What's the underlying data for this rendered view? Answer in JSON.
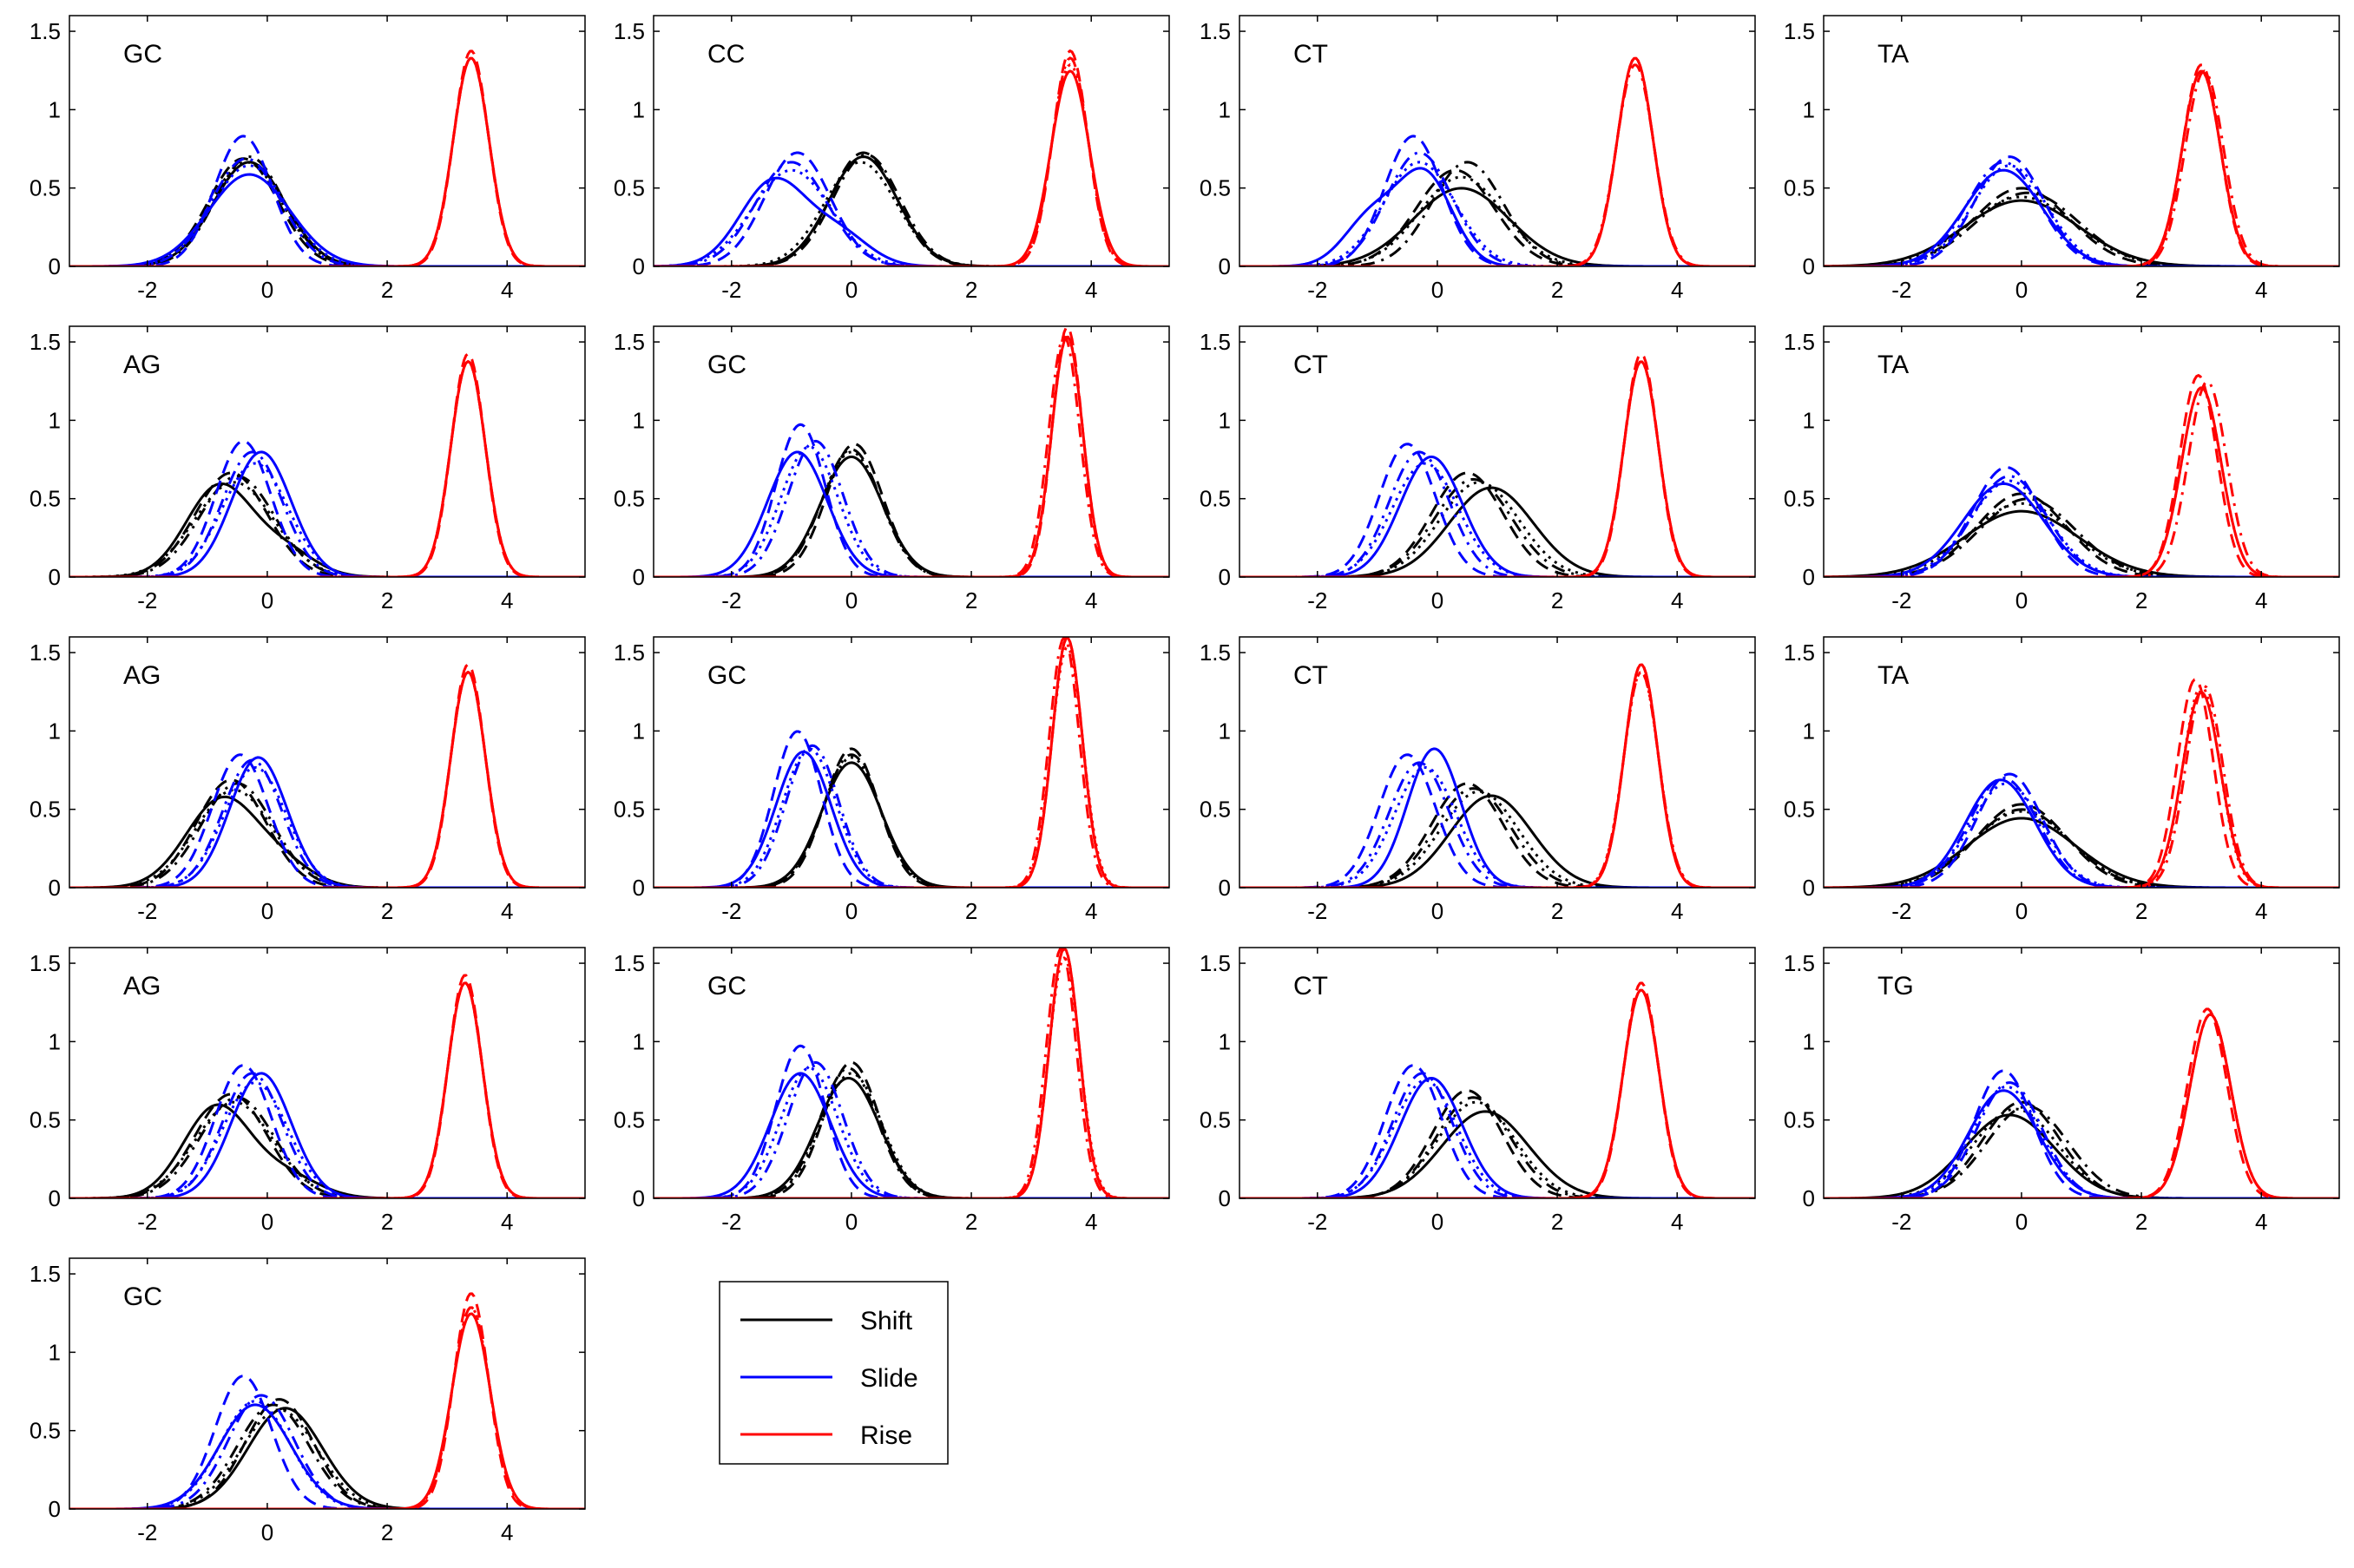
{
  "chart_data": {
    "type": "line",
    "layout": {
      "rows": 5,
      "cols": 4
    },
    "xlim": [
      -3.3,
      5.3
    ],
    "ylim": [
      0,
      1.6
    ],
    "x_ticks": [
      -2,
      0,
      2,
      4
    ],
    "x_tick_labels": [
      "-2",
      "0",
      "2",
      "4"
    ],
    "y_ticks": [
      0,
      0.5,
      1,
      1.5
    ],
    "y_tick_labels": [
      "0",
      "0.5",
      "1",
      "1.5"
    ],
    "grid": false,
    "line_styles": [
      "solid",
      "dashed",
      "dashdot",
      "dotted"
    ],
    "legend": {
      "placement": "below-row-4-column-2",
      "entries": [
        {
          "name": "Shift",
          "color": "#000000"
        },
        {
          "name": "Slide",
          "color": "#0000ff"
        },
        {
          "name": "Rise",
          "color": "#ff0000"
        }
      ]
    },
    "panels": [
      {
        "label": "GC",
        "row": 0,
        "col": 0,
        "shift": [
          {
            "mu": -0.3,
            "sigma": 0.6
          },
          {
            "mu": -0.4,
            "sigma": 0.58
          },
          {
            "mu": -0.3,
            "sigma": 0.57
          },
          {
            "mu": -0.35,
            "sigma": 0.6
          }
        ],
        "slide": [
          {
            "mu": -0.3,
            "sigma": 0.68
          },
          {
            "mu": -0.4,
            "sigma": 0.48
          },
          {
            "mu": -0.35,
            "sigma": 0.58
          },
          {
            "mu": -0.3,
            "sigma": 0.62
          }
        ],
        "rise": [
          {
            "mu": 3.4,
            "sigma": 0.3
          },
          {
            "mu": 3.4,
            "sigma": 0.29
          },
          {
            "mu": 3.4,
            "sigma": 0.3
          },
          {
            "mu": 3.4,
            "sigma": 0.3
          }
        ]
      },
      {
        "label": "CC",
        "row": 0,
        "col": 1,
        "shift": [
          {
            "mu": 0.2,
            "sigma": 0.57
          },
          {
            "mu": 0.2,
            "sigma": 0.55
          },
          {
            "mu": 0.25,
            "sigma": 0.56
          },
          {
            "mu": 0.15,
            "sigma": 0.6
          }
        ],
        "slide": [
          {
            "mu": -1.3,
            "sigma": 0.55,
            "w": 0.75,
            "mu2": -0.2,
            "sigma2": 0.5
          },
          {
            "mu": -0.9,
            "sigma": 0.55
          },
          {
            "mu": -1.0,
            "sigma": 0.6
          },
          {
            "mu": -1.0,
            "sigma": 0.65
          }
        ],
        "rise": [
          {
            "mu": 3.65,
            "sigma": 0.32
          },
          {
            "mu": 3.65,
            "sigma": 0.29
          },
          {
            "mu": 3.65,
            "sigma": 0.3
          },
          {
            "mu": 3.65,
            "sigma": 0.31
          }
        ]
      },
      {
        "label": "CT",
        "row": 0,
        "col": 2,
        "shift": [
          {
            "mu": 0.4,
            "sigma": 0.8
          },
          {
            "mu": 0.3,
            "sigma": 0.65
          },
          {
            "mu": 0.5,
            "sigma": 0.6
          },
          {
            "mu": 0.4,
            "sigma": 0.7
          }
        ],
        "slide": [
          {
            "mu": -0.2,
            "sigma": 0.45,
            "w": 0.65,
            "mu2": -1.1,
            "sigma2": 0.45
          },
          {
            "mu": -0.4,
            "sigma": 0.48
          },
          {
            "mu": -0.3,
            "sigma": 0.55
          },
          {
            "mu": -0.3,
            "sigma": 0.6
          }
        ],
        "rise": [
          {
            "mu": 3.3,
            "sigma": 0.3
          },
          {
            "mu": 3.3,
            "sigma": 0.3
          },
          {
            "mu": 3.3,
            "sigma": 0.31
          },
          {
            "mu": 3.3,
            "sigma": 0.3
          }
        ]
      },
      {
        "label": "TA",
        "row": 0,
        "col": 3,
        "shift": [
          {
            "mu": 0.0,
            "sigma": 0.95
          },
          {
            "mu": 0.0,
            "sigma": 0.8
          },
          {
            "mu": 0.1,
            "sigma": 0.85
          },
          {
            "mu": 0.0,
            "sigma": 0.9
          }
        ],
        "slide": [
          {
            "mu": -0.3,
            "sigma": 0.65
          },
          {
            "mu": -0.2,
            "sigma": 0.57
          },
          {
            "mu": -0.3,
            "sigma": 0.6
          },
          {
            "mu": -0.2,
            "sigma": 0.62
          }
        ],
        "rise": [
          {
            "mu": 3.0,
            "sigma": 0.32
          },
          {
            "mu": 3.0,
            "sigma": 0.31
          },
          {
            "mu": 3.05,
            "sigma": 0.32
          },
          {
            "mu": 3.0,
            "sigma": 0.32
          }
        ]
      },
      {
        "label": "AG",
        "row": 1,
        "col": 0,
        "shift": [
          {
            "mu": -0.8,
            "sigma": 0.55,
            "w": 0.8,
            "mu2": 0.3,
            "sigma2": 0.5
          },
          {
            "mu": -0.6,
            "sigma": 0.6
          },
          {
            "mu": -0.5,
            "sigma": 0.62
          },
          {
            "mu": -0.55,
            "sigma": 0.66
          }
        ],
        "slide": [
          {
            "mu": -0.1,
            "sigma": 0.5
          },
          {
            "mu": -0.4,
            "sigma": 0.46
          },
          {
            "mu": -0.25,
            "sigma": 0.5
          },
          {
            "mu": -0.2,
            "sigma": 0.55
          }
        ],
        "rise": [
          {
            "mu": 3.35,
            "sigma": 0.29
          },
          {
            "mu": 3.35,
            "sigma": 0.28
          },
          {
            "mu": 3.35,
            "sigma": 0.29
          },
          {
            "mu": 3.35,
            "sigma": 0.29
          }
        ]
      },
      {
        "label": "GC",
        "row": 1,
        "col": 1,
        "shift": [
          {
            "mu": 0.0,
            "sigma": 0.52
          },
          {
            "mu": 0.05,
            "sigma": 0.47
          },
          {
            "mu": 0.0,
            "sigma": 0.49
          },
          {
            "mu": 0.0,
            "sigma": 0.5
          }
        ],
        "slide": [
          {
            "mu": -0.9,
            "sigma": 0.5
          },
          {
            "mu": -0.85,
            "sigma": 0.41
          },
          {
            "mu": -0.6,
            "sigma": 0.46
          },
          {
            "mu": -0.7,
            "sigma": 0.48
          }
        ],
        "rise": [
          {
            "mu": 3.6,
            "sigma": 0.26
          },
          {
            "mu": 3.6,
            "sigma": 0.25
          },
          {
            "mu": 3.55,
            "sigma": 0.26
          },
          {
            "mu": 3.6,
            "sigma": 0.26
          }
        ]
      },
      {
        "label": "CT",
        "row": 1,
        "col": 2,
        "shift": [
          {
            "mu": 0.9,
            "sigma": 0.7
          },
          {
            "mu": 0.5,
            "sigma": 0.6
          },
          {
            "mu": 0.6,
            "sigma": 0.64
          },
          {
            "mu": 0.7,
            "sigma": 0.66
          }
        ],
        "slide": [
          {
            "mu": -0.1,
            "sigma": 0.52
          },
          {
            "mu": -0.5,
            "sigma": 0.47
          },
          {
            "mu": -0.3,
            "sigma": 0.5
          },
          {
            "mu": -0.2,
            "sigma": 0.55
          }
        ],
        "rise": [
          {
            "mu": 3.4,
            "sigma": 0.29
          },
          {
            "mu": 3.4,
            "sigma": 0.28
          },
          {
            "mu": 3.4,
            "sigma": 0.29
          },
          {
            "mu": 3.4,
            "sigma": 0.29
          }
        ]
      },
      {
        "label": "TA",
        "row": 1,
        "col": 3,
        "shift": [
          {
            "mu": 0.0,
            "sigma": 0.95
          },
          {
            "mu": 0.0,
            "sigma": 0.75
          },
          {
            "mu": 0.1,
            "sigma": 0.8
          },
          {
            "mu": 0.0,
            "sigma": 0.85
          }
        ],
        "slide": [
          {
            "mu": -0.3,
            "sigma": 0.67
          },
          {
            "mu": -0.25,
            "sigma": 0.57
          },
          {
            "mu": -0.2,
            "sigma": 0.62
          },
          {
            "mu": -0.2,
            "sigma": 0.65
          }
        ],
        "rise": [
          {
            "mu": 3.0,
            "sigma": 0.33
          },
          {
            "mu": 2.95,
            "sigma": 0.31
          },
          {
            "mu": 3.1,
            "sigma": 0.32
          },
          {
            "mu": 3.0,
            "sigma": 0.33
          }
        ]
      },
      {
        "label": "AG",
        "row": 2,
        "col": 0,
        "shift": [
          {
            "mu": -0.75,
            "sigma": 0.6,
            "w": 0.85,
            "mu2": 0.3,
            "sigma2": 0.5
          },
          {
            "mu": -0.6,
            "sigma": 0.58
          },
          {
            "mu": -0.5,
            "sigma": 0.6
          },
          {
            "mu": -0.55,
            "sigma": 0.64
          }
        ],
        "slide": [
          {
            "mu": -0.15,
            "sigma": 0.48
          },
          {
            "mu": -0.45,
            "sigma": 0.47
          },
          {
            "mu": -0.25,
            "sigma": 0.49
          },
          {
            "mu": -0.2,
            "sigma": 0.52
          }
        ],
        "rise": [
          {
            "mu": 3.35,
            "sigma": 0.29
          },
          {
            "mu": 3.35,
            "sigma": 0.28
          },
          {
            "mu": 3.35,
            "sigma": 0.29
          },
          {
            "mu": 3.35,
            "sigma": 0.29
          }
        ]
      },
      {
        "label": "GC",
        "row": 2,
        "col": 1,
        "shift": [
          {
            "mu": 0.0,
            "sigma": 0.5
          },
          {
            "mu": 0.0,
            "sigma": 0.45
          },
          {
            "mu": 0.0,
            "sigma": 0.47
          },
          {
            "mu": 0.0,
            "sigma": 0.48
          }
        ],
        "slide": [
          {
            "mu": -0.8,
            "sigma": 0.46
          },
          {
            "mu": -0.9,
            "sigma": 0.4
          },
          {
            "mu": -0.65,
            "sigma": 0.44
          },
          {
            "mu": -0.7,
            "sigma": 0.45
          }
        ],
        "rise": [
          {
            "mu": 3.6,
            "sigma": 0.25
          },
          {
            "mu": 3.6,
            "sigma": 0.25
          },
          {
            "mu": 3.55,
            "sigma": 0.25
          },
          {
            "mu": 3.6,
            "sigma": 0.26
          }
        ]
      },
      {
        "label": "CT",
        "row": 2,
        "col": 2,
        "shift": [
          {
            "mu": 0.9,
            "sigma": 0.68
          },
          {
            "mu": 0.5,
            "sigma": 0.6
          },
          {
            "mu": 0.6,
            "sigma": 0.63
          },
          {
            "mu": 0.7,
            "sigma": 0.65
          }
        ],
        "slide": [
          {
            "mu": -0.05,
            "sigma": 0.45
          },
          {
            "mu": -0.5,
            "sigma": 0.47
          },
          {
            "mu": -0.3,
            "sigma": 0.5
          },
          {
            "mu": -0.2,
            "sigma": 0.52
          }
        ],
        "rise": [
          {
            "mu": 3.4,
            "sigma": 0.28
          },
          {
            "mu": 3.4,
            "sigma": 0.28
          },
          {
            "mu": 3.4,
            "sigma": 0.29
          },
          {
            "mu": 3.4,
            "sigma": 0.29
          }
        ]
      },
      {
        "label": "TA",
        "row": 2,
        "col": 3,
        "shift": [
          {
            "mu": 0.0,
            "sigma": 0.9
          },
          {
            "mu": 0.0,
            "sigma": 0.75
          },
          {
            "mu": 0.0,
            "sigma": 0.8
          },
          {
            "mu": 0.0,
            "sigma": 0.82
          }
        ],
        "slide": [
          {
            "mu": -0.35,
            "sigma": 0.58
          },
          {
            "mu": -0.2,
            "sigma": 0.55
          },
          {
            "mu": -0.3,
            "sigma": 0.57
          },
          {
            "mu": -0.25,
            "sigma": 0.6
          }
        ],
        "rise": [
          {
            "mu": 3.0,
            "sigma": 0.32
          },
          {
            "mu": 2.9,
            "sigma": 0.3
          },
          {
            "mu": 3.05,
            "sigma": 0.31
          },
          {
            "mu": 3.0,
            "sigma": 0.31
          }
        ]
      },
      {
        "label": "AG",
        "row": 3,
        "col": 0,
        "shift": [
          {
            "mu": -0.85,
            "sigma": 0.55,
            "w": 0.8,
            "mu2": 0.3,
            "sigma2": 0.55
          },
          {
            "mu": -0.6,
            "sigma": 0.6
          },
          {
            "mu": -0.5,
            "sigma": 0.62
          },
          {
            "mu": -0.55,
            "sigma": 0.65
          }
        ],
        "slide": [
          {
            "mu": -0.1,
            "sigma": 0.5
          },
          {
            "mu": -0.4,
            "sigma": 0.47
          },
          {
            "mu": -0.25,
            "sigma": 0.5
          },
          {
            "mu": -0.2,
            "sigma": 0.54
          }
        ],
        "rise": [
          {
            "mu": 3.3,
            "sigma": 0.29
          },
          {
            "mu": 3.3,
            "sigma": 0.28
          },
          {
            "mu": 3.3,
            "sigma": 0.29
          },
          {
            "mu": 3.3,
            "sigma": 0.29
          }
        ]
      },
      {
        "label": "GC",
        "row": 3,
        "col": 1,
        "shift": [
          {
            "mu": -0.05,
            "sigma": 0.52
          },
          {
            "mu": 0.0,
            "sigma": 0.46
          },
          {
            "mu": -0.05,
            "sigma": 0.48
          },
          {
            "mu": 0.0,
            "sigma": 0.5
          }
        ],
        "slide": [
          {
            "mu": -0.85,
            "sigma": 0.5
          },
          {
            "mu": -0.85,
            "sigma": 0.41
          },
          {
            "mu": -0.6,
            "sigma": 0.46
          },
          {
            "mu": -0.7,
            "sigma": 0.48
          }
        ],
        "rise": [
          {
            "mu": 3.55,
            "sigma": 0.25
          },
          {
            "mu": 3.55,
            "sigma": 0.25
          },
          {
            "mu": 3.5,
            "sigma": 0.25
          },
          {
            "mu": 3.55,
            "sigma": 0.26
          }
        ]
      },
      {
        "label": "CT",
        "row": 3,
        "col": 2,
        "shift": [
          {
            "mu": 0.8,
            "sigma": 0.72
          },
          {
            "mu": 0.5,
            "sigma": 0.58
          },
          {
            "mu": 0.6,
            "sigma": 0.62
          },
          {
            "mu": 0.65,
            "sigma": 0.65
          }
        ],
        "slide": [
          {
            "mu": -0.1,
            "sigma": 0.52
          },
          {
            "mu": -0.4,
            "sigma": 0.47
          },
          {
            "mu": -0.25,
            "sigma": 0.5
          },
          {
            "mu": -0.2,
            "sigma": 0.53
          }
        ],
        "rise": [
          {
            "mu": 3.4,
            "sigma": 0.3
          },
          {
            "mu": 3.4,
            "sigma": 0.29
          },
          {
            "mu": 3.4,
            "sigma": 0.3
          },
          {
            "mu": 3.4,
            "sigma": 0.3
          }
        ]
      },
      {
        "label": "TG",
        "row": 3,
        "col": 3,
        "shift": [
          {
            "mu": -0.2,
            "sigma": 0.75
          },
          {
            "mu": 0.0,
            "sigma": 0.65
          },
          {
            "mu": 0.1,
            "sigma": 0.68
          },
          {
            "mu": -0.1,
            "sigma": 0.7
          }
        ],
        "slide": [
          {
            "mu": -0.3,
            "sigma": 0.58
          },
          {
            "mu": -0.3,
            "sigma": 0.49
          },
          {
            "mu": -0.2,
            "sigma": 0.54
          },
          {
            "mu": -0.25,
            "sigma": 0.56
          }
        ],
        "rise": [
          {
            "mu": 3.15,
            "sigma": 0.34
          },
          {
            "mu": 3.1,
            "sigma": 0.33
          },
          {
            "mu": 3.15,
            "sigma": 0.34
          },
          {
            "mu": 3.15,
            "sigma": 0.34
          }
        ]
      },
      {
        "label": "GC",
        "row": 4,
        "col": 0,
        "shift": [
          {
            "mu": 0.3,
            "sigma": 0.62
          },
          {
            "mu": 0.2,
            "sigma": 0.57
          },
          {
            "mu": 0.1,
            "sigma": 0.6
          },
          {
            "mu": 0.2,
            "sigma": 0.63
          }
        ],
        "slide": [
          {
            "mu": -0.2,
            "sigma": 0.6
          },
          {
            "mu": -0.4,
            "sigma": 0.47
          },
          {
            "mu": -0.1,
            "sigma": 0.55
          },
          {
            "mu": -0.2,
            "sigma": 0.58
          }
        ],
        "rise": [
          {
            "mu": 3.4,
            "sigma": 0.32
          },
          {
            "mu": 3.4,
            "sigma": 0.29
          },
          {
            "mu": 3.4,
            "sigma": 0.31
          },
          {
            "mu": 3.4,
            "sigma": 0.31
          }
        ]
      }
    ]
  }
}
